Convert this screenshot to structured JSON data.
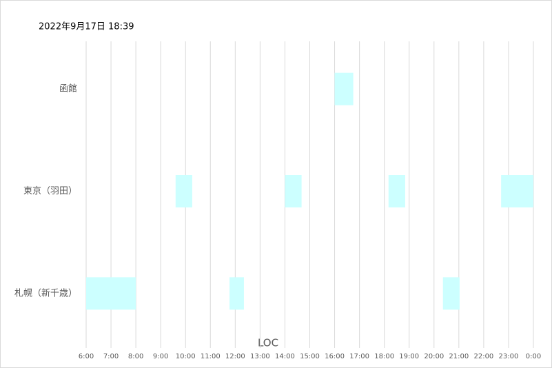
{
  "chart_data": {
    "type": "gantt",
    "title": "2022年9月17日 18:39",
    "x_label": "LOC",
    "rows": [
      {
        "name": "函館",
        "bars": [
          [
            16.0,
            16.75
          ]
        ]
      },
      {
        "name": "東京（羽田）",
        "bars": [
          [
            9.6,
            10.27
          ],
          [
            14.0,
            14.67
          ],
          [
            18.17,
            18.84
          ],
          [
            22.7,
            24
          ]
        ]
      },
      {
        "name": "札幌（新千歳）",
        "bars": [
          [
            6,
            8
          ],
          [
            11.77,
            12.35
          ],
          [
            20.36,
            21.03
          ]
        ]
      }
    ],
    "color": "#ccffff",
    "xlim": [
      6,
      24
    ],
    "xticks": [
      {
        "value": 6,
        "label": "6:00"
      },
      {
        "value": 7,
        "label": "7:00"
      },
      {
        "value": 8,
        "label": "8:00"
      },
      {
        "value": 9,
        "label": "9:00"
      },
      {
        "value": 10,
        "label": "10:00"
      },
      {
        "value": 11,
        "label": "11:00"
      },
      {
        "value": 12,
        "label": "12:00"
      },
      {
        "value": 13,
        "label": "13:00"
      },
      {
        "value": 14,
        "label": "14:00"
      },
      {
        "value": 15,
        "label": "15:00"
      },
      {
        "value": 16,
        "label": "16:00"
      },
      {
        "value": 17,
        "label": "17:00"
      },
      {
        "value": 18,
        "label": "18:00"
      },
      {
        "value": 19,
        "label": "19:00"
      },
      {
        "value": 20,
        "label": "20:00"
      },
      {
        "value": 21,
        "label": "21:00"
      },
      {
        "value": 22,
        "label": "22:00"
      },
      {
        "value": 23,
        "label": "23:00"
      },
      {
        "value": 24,
        "label": "0:00"
      }
    ],
    "grid": true
  }
}
